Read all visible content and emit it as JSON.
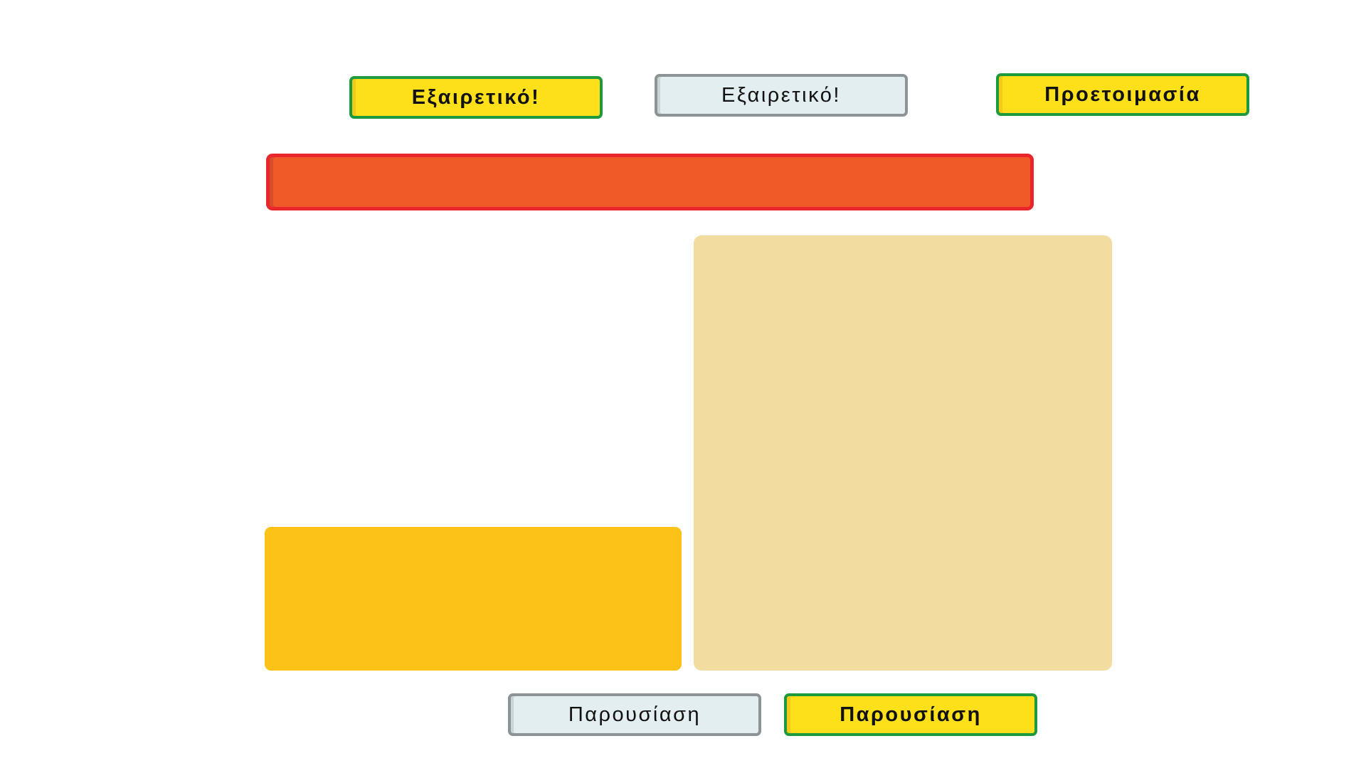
{
  "buttons": {
    "top_left_label": "Εξαιρετικό!",
    "top_center_label": "Εξαιρετικό!",
    "top_right_label": "Προετοιμασία",
    "bottom_left_label": "Παρουσίαση",
    "bottom_right_label": "Παρουσίαση"
  },
  "colors": {
    "button_active_fill": "#fde01a",
    "button_active_border": "#1e9a3e",
    "button_inactive_fill": "#e2eef0",
    "button_inactive_border": "#8d9496",
    "bar_fill": "#f05a28",
    "bar_border": "#e8262b",
    "panel_left_fill": "#fdc218",
    "panel_right_fill": "#f3dca0"
  }
}
